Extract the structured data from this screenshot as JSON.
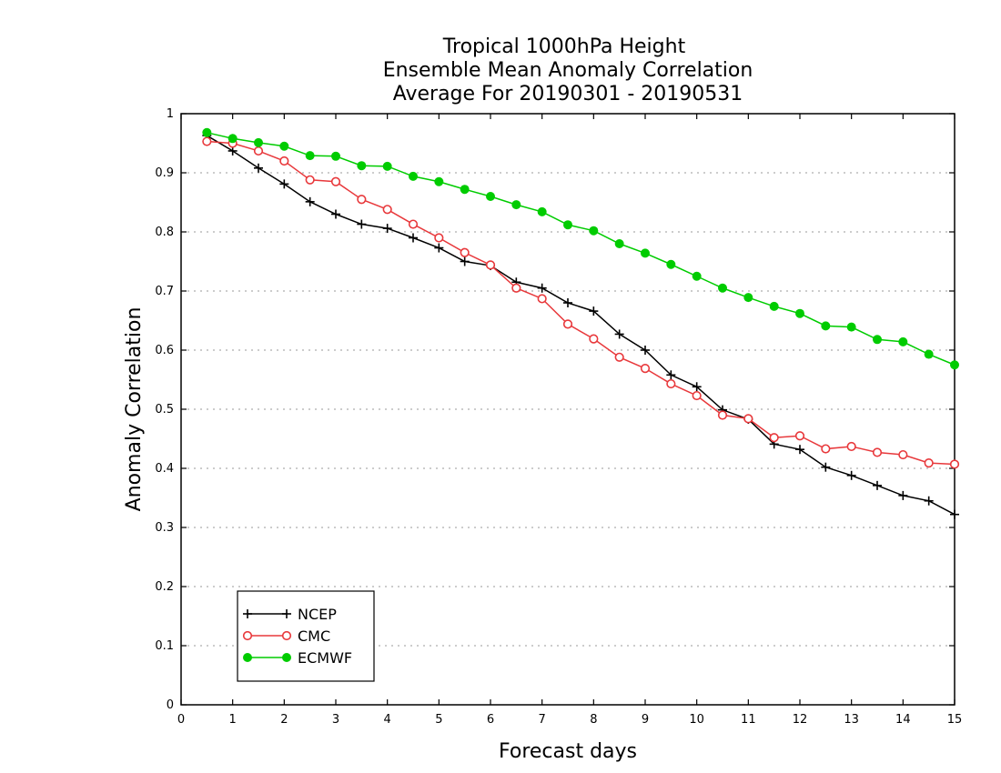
{
  "chart_data": {
    "type": "line",
    "title_lines": [
      "Tropical 1000hPa Height",
      "Ensemble Mean Anomaly Correlation",
      "Average For 20190301 - 20190531"
    ],
    "xlabel": "Forecast days",
    "ylabel": "Anomaly Correlation",
    "xlim": [
      0,
      15
    ],
    "ylim": [
      0,
      1
    ],
    "x_ticks": [
      "0",
      "1",
      "2",
      "3",
      "4",
      "5",
      "6",
      "7",
      "8",
      "9",
      "10",
      "11",
      "12",
      "13",
      "14",
      "15"
    ],
    "y_ticks": [
      "0",
      "0.1",
      "0.2",
      "0.3",
      "0.4",
      "0.5",
      "0.6",
      "0.7",
      "0.8",
      "0.9",
      "1"
    ],
    "grid": "horizontal dotted",
    "legend_position": "bottom-left",
    "x": [
      0.5,
      1,
      1.5,
      2,
      2.5,
      3,
      3.5,
      4,
      4.5,
      5,
      5.5,
      6,
      6.5,
      7,
      7.5,
      8,
      8.5,
      9,
      9.5,
      10,
      10.5,
      11,
      11.5,
      12,
      12.5,
      13,
      13.5,
      14,
      14.5,
      15
    ],
    "series": [
      {
        "name": "NCEP",
        "color": "#000000",
        "marker": "plus",
        "values": [
          0.963,
          0.937,
          0.908,
          0.881,
          0.851,
          0.83,
          0.813,
          0.806,
          0.79,
          0.773,
          0.75,
          0.743,
          0.715,
          0.705,
          0.68,
          0.666,
          0.627,
          0.6,
          0.558,
          0.538,
          0.499,
          0.483,
          0.441,
          0.432,
          0.402,
          0.388,
          0.371,
          0.354,
          0.345,
          0.322
        ]
      },
      {
        "name": "CMC",
        "color": "#e8383b",
        "marker": "open-circle",
        "values": [
          0.953,
          0.95,
          0.937,
          0.92,
          0.888,
          0.885,
          0.855,
          0.838,
          0.813,
          0.79,
          0.765,
          0.744,
          0.705,
          0.687,
          0.644,
          0.619,
          0.588,
          0.569,
          0.543,
          0.523,
          0.49,
          0.484,
          0.452,
          0.455,
          0.433,
          0.437,
          0.427,
          0.423,
          0.409,
          0.407
        ]
      },
      {
        "name": "ECMWF",
        "color": "#00cc00",
        "marker": "filled-circle",
        "values": [
          0.968,
          0.958,
          0.951,
          0.945,
          0.929,
          0.928,
          0.912,
          0.911,
          0.894,
          0.885,
          0.872,
          0.86,
          0.846,
          0.834,
          0.812,
          0.802,
          0.78,
          0.764,
          0.745,
          0.725,
          0.705,
          0.689,
          0.674,
          0.662,
          0.641,
          0.639,
          0.618,
          0.614,
          0.593,
          0.575
        ]
      }
    ]
  }
}
